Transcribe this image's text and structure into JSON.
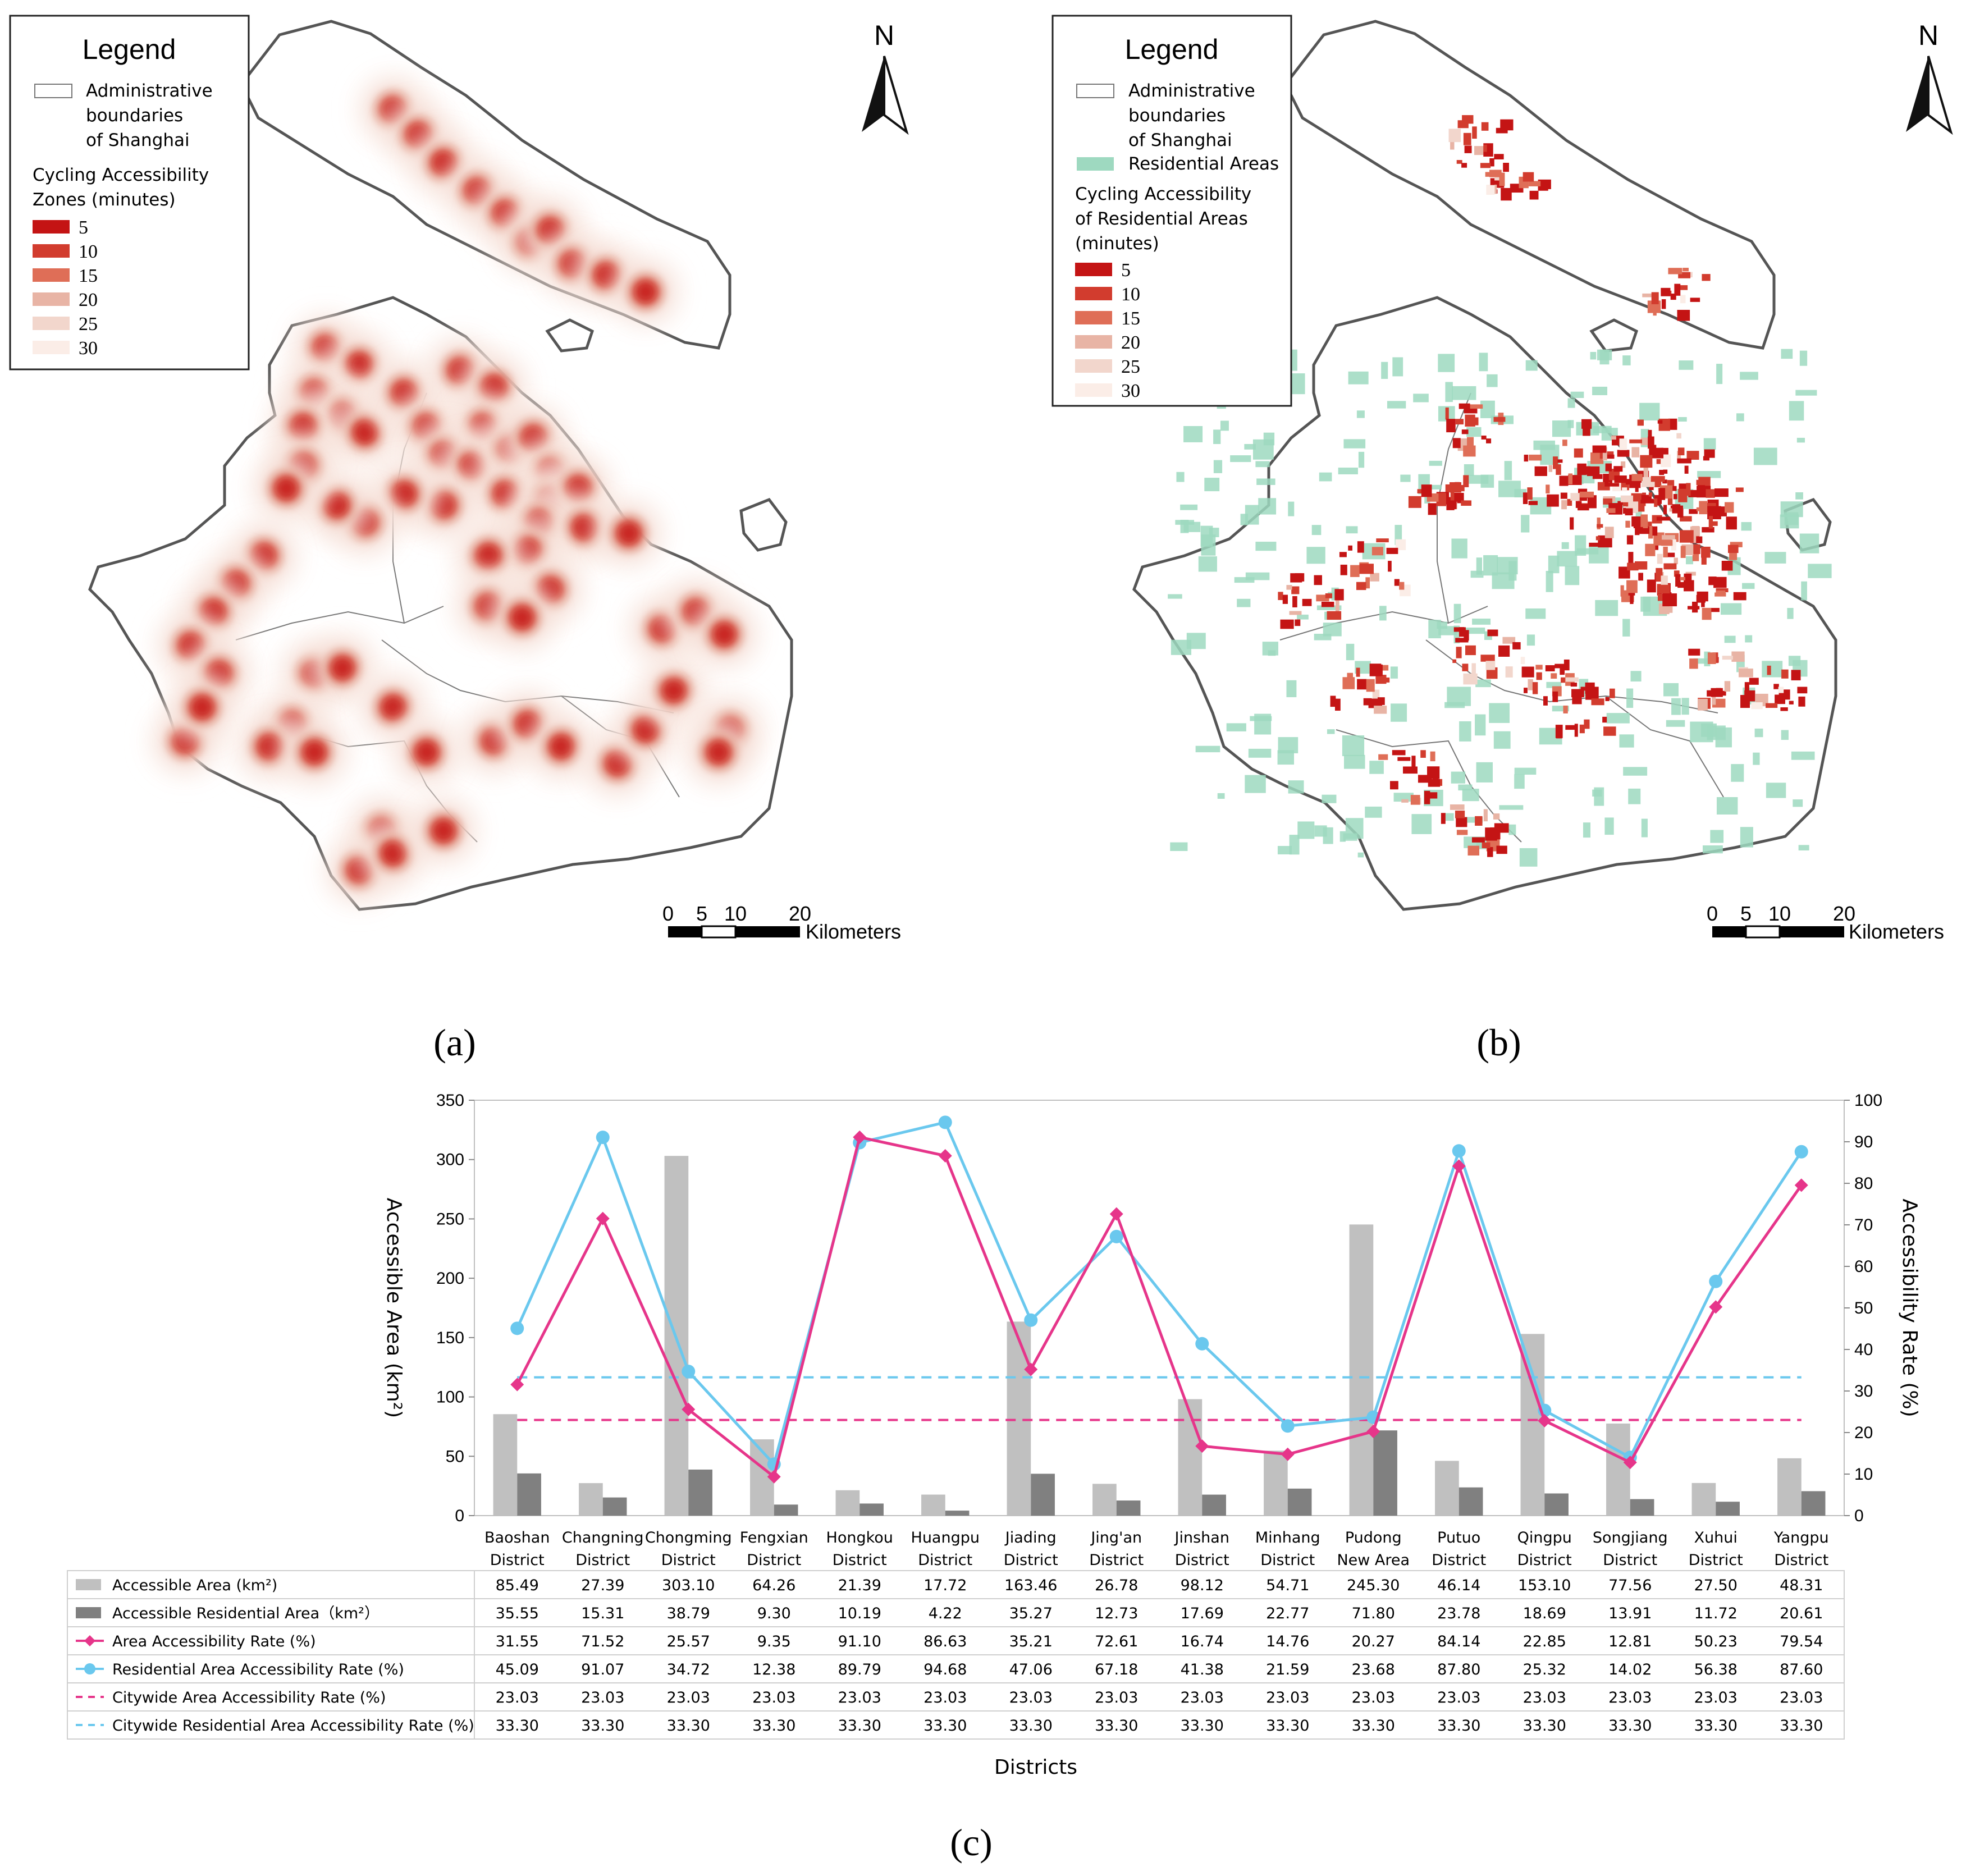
{
  "maps": [
    {
      "panel": "(a)",
      "legend": {
        "title": "Legend",
        "boundary_label": [
          "Administrative",
          "boundaries",
          "of Shanghai"
        ],
        "residential_label": "",
        "zones_title": [
          "Cycling Accessibility",
          "Zones (minutes)"
        ],
        "classes": [
          "5",
          "10",
          "15",
          "20",
          "25",
          "30"
        ]
      },
      "north": "N",
      "scale": {
        "ticks": [
          "0",
          "5",
          "10",
          "20"
        ],
        "unit": "Kilometers"
      }
    },
    {
      "panel": "(b)",
      "legend": {
        "title": "Legend",
        "boundary_label": [
          "Administrative",
          "boundaries",
          "of Shanghai"
        ],
        "residential_label": "Residential Areas",
        "zones_title": [
          "Cycling Accessibility",
          "of Residential Areas",
          "(minutes)"
        ],
        "classes": [
          "5",
          "10",
          "15",
          "20",
          "25",
          "30"
        ]
      },
      "north": "N",
      "scale": {
        "ticks": [
          "0",
          "5",
          "10",
          "20"
        ],
        "unit": "Kilometers"
      }
    }
  ],
  "colors": {
    "classes": [
      "#c41414",
      "#d23c2e",
      "#df6e57",
      "#e8b4a5",
      "#f2d6cc",
      "#fbede7"
    ],
    "residential": "#9ed9c0",
    "bar_area": "#c0c0c0",
    "bar_res": "#808080",
    "line_area": "#e6358a",
    "line_res": "#6ac8ee"
  },
  "chart_data": {
    "type": "bar",
    "panel": "(c)",
    "categories": [
      [
        "Baoshan",
        "District"
      ],
      [
        "Changning",
        "District"
      ],
      [
        "Chongming",
        "District"
      ],
      [
        "Fengxian",
        "District"
      ],
      [
        "Hongkou",
        "District"
      ],
      [
        "Huangpu",
        "District"
      ],
      [
        "Jiading",
        "District"
      ],
      [
        "Jing'an",
        "District"
      ],
      [
        "Jinshan",
        "District"
      ],
      [
        "Minhang",
        "District"
      ],
      [
        "Pudong",
        "New Area"
      ],
      [
        "Putuo",
        "District"
      ],
      [
        "Qingpu",
        "District"
      ],
      [
        "Songjiang",
        "District"
      ],
      [
        "Xuhui",
        "District"
      ],
      [
        "Yangpu",
        "District"
      ]
    ],
    "xlabel": "Districts",
    "ylabel_left": "Accessible Area (km²)",
    "ylabel_right": "Accessibility Rate (%)",
    "ylim_left": [
      0,
      350
    ],
    "ylim_right": [
      0,
      100
    ],
    "yticks_left": [
      "0",
      "50",
      "100",
      "150",
      "200",
      "250",
      "300",
      "350"
    ],
    "yticks_right": [
      "0",
      "10",
      "20",
      "30",
      "40",
      "50",
      "60",
      "70",
      "80",
      "90",
      "100"
    ],
    "series": [
      {
        "name": "Accessible Area (km²)",
        "kind": "bar",
        "axis": "left",
        "values": [
          85.49,
          27.39,
          303.1,
          64.26,
          21.39,
          17.72,
          163.46,
          26.78,
          98.12,
          54.71,
          245.3,
          46.14,
          153.1,
          77.56,
          27.5,
          48.31
        ],
        "labels": [
          "85.49",
          "27.39",
          "303.10",
          "64.26",
          "21.39",
          "17.72",
          "163.46",
          "26.78",
          "98.12",
          "54.71",
          "245.30",
          "46.14",
          "153.10",
          "77.56",
          "27.50",
          "48.31"
        ]
      },
      {
        "name": "Accessible Residential Area（km²）",
        "kind": "bar",
        "axis": "left",
        "values": [
          35.55,
          15.31,
          38.79,
          9.3,
          10.19,
          4.22,
          35.27,
          12.73,
          17.69,
          22.77,
          71.8,
          23.78,
          18.69,
          13.91,
          11.72,
          20.61
        ],
        "labels": [
          "35.55",
          "15.31",
          "38.79",
          "9.30",
          "10.19",
          "4.22",
          "35.27",
          "12.73",
          "17.69",
          "22.77",
          "71.80",
          "23.78",
          "18.69",
          "13.91",
          "11.72",
          "20.61"
        ]
      },
      {
        "name": "Area Accessibility Rate (%)",
        "kind": "line",
        "axis": "right",
        "values": [
          31.55,
          71.52,
          25.57,
          9.35,
          91.1,
          86.63,
          35.21,
          72.61,
          16.74,
          14.76,
          20.27,
          84.14,
          22.85,
          12.81,
          50.23,
          79.54
        ],
        "labels": [
          "31.55",
          "71.52",
          "25.57",
          "9.35",
          "91.10",
          "86.63",
          "35.21",
          "72.61",
          "16.74",
          "14.76",
          "20.27",
          "84.14",
          "22.85",
          "12.81",
          "50.23",
          "79.54"
        ]
      },
      {
        "name": "Residential Area Accessibility Rate (%)",
        "kind": "line",
        "axis": "right",
        "values": [
          45.09,
          91.07,
          34.72,
          12.38,
          89.79,
          94.68,
          47.06,
          67.18,
          41.38,
          21.59,
          23.68,
          87.8,
          25.32,
          14.02,
          56.38,
          87.6
        ],
        "labels": [
          "45.09",
          "91.07",
          "34.72",
          "12.38",
          "89.79",
          "94.68",
          "47.06",
          "67.18",
          "41.38",
          "21.59",
          "23.68",
          "87.80",
          "25.32",
          "14.02",
          "56.38",
          "87.60"
        ]
      },
      {
        "name": "Citywide Area Accessibility Rate (%)",
        "kind": "dashed",
        "axis": "right",
        "values": [
          23.03,
          23.03,
          23.03,
          23.03,
          23.03,
          23.03,
          23.03,
          23.03,
          23.03,
          23.03,
          23.03,
          23.03,
          23.03,
          23.03,
          23.03,
          23.03
        ],
        "labels": [
          "23.03",
          "23.03",
          "23.03",
          "23.03",
          "23.03",
          "23.03",
          "23.03",
          "23.03",
          "23.03",
          "23.03",
          "23.03",
          "23.03",
          "23.03",
          "23.03",
          "23.03",
          "23.03"
        ]
      },
      {
        "name": "Citywide Residential Area Accessibility Rate (%)",
        "kind": "dashed",
        "axis": "right",
        "values": [
          33.3,
          33.3,
          33.3,
          33.3,
          33.3,
          33.3,
          33.3,
          33.3,
          33.3,
          33.3,
          33.3,
          33.3,
          33.3,
          33.3,
          33.3,
          33.3
        ],
        "labels": [
          "33.30",
          "33.30",
          "33.30",
          "33.30",
          "33.30",
          "33.30",
          "33.30",
          "33.30",
          "33.30",
          "33.30",
          "33.30",
          "33.30",
          "33.30",
          "33.30",
          "33.30",
          "33.30"
        ]
      }
    ]
  }
}
